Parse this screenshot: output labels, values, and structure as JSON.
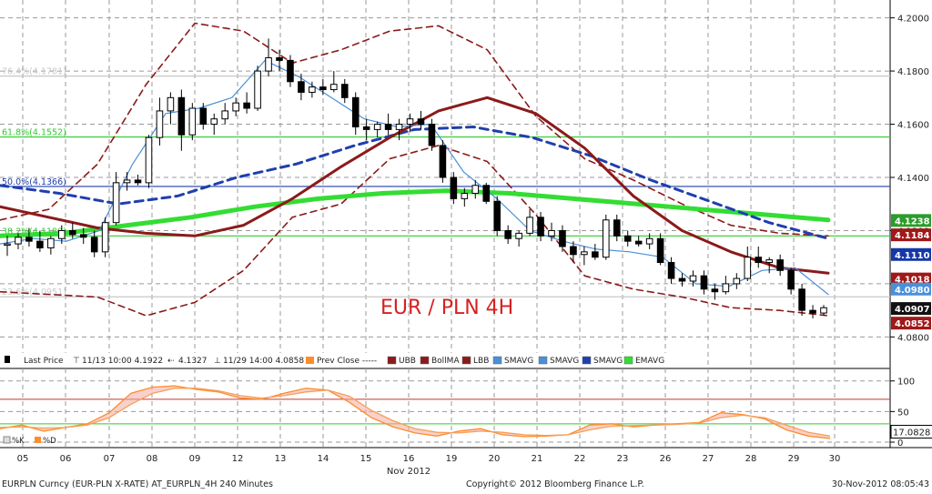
{
  "chart_data": [
    {
      "type": "candlestick",
      "panel": "price",
      "instrument": "EURPLN Curncy",
      "annotation": "EUR / PLN 4H",
      "x_labels": [
        "05",
        "06",
        "07",
        "08",
        "09",
        "12",
        "13",
        "14",
        "15",
        "16",
        "19",
        "20",
        "21",
        "22",
        "23",
        "26",
        "27",
        "28",
        "29",
        "30"
      ],
      "month_label": "Nov 2012",
      "ylim": [
        4.075,
        4.205
      ],
      "y_ticks": [
        "4.2000",
        "4.1800",
        "4.1600",
        "4.1400",
        "4.1200",
        "4.1000",
        "4.0800"
      ],
      "fib_levels": [
        {
          "label": "76.4%(4.1781)",
          "value": 4.1781,
          "color": "#c8c8c8"
        },
        {
          "label": "61.8%(4.1552)",
          "value": 4.1552,
          "color": "#2ecc2e"
        },
        {
          "label": "50.0%(4.1366)",
          "value": 4.1366,
          "color": "#1f3fae"
        },
        {
          "label": "38.2%(4.1180)",
          "value": 4.118,
          "color": "#2ecc2e"
        },
        {
          "label": "23.6%(4.0951)",
          "value": 4.0951,
          "color": "#c8c8c8"
        }
      ],
      "candles": [
        [
          4.1145,
          4.118,
          4.1105,
          4.115
        ],
        [
          4.115,
          4.119,
          4.113,
          4.1175
        ],
        [
          4.1175,
          4.121,
          4.114,
          4.116
        ],
        [
          4.116,
          4.12,
          4.112,
          4.1135
        ],
        [
          4.1135,
          4.118,
          4.111,
          4.117
        ],
        [
          4.117,
          4.122,
          4.115,
          4.12
        ],
        [
          4.12,
          4.123,
          4.117,
          4.1185
        ],
        [
          4.1185,
          4.121,
          4.115,
          4.1175
        ],
        [
          4.1175,
          4.12,
          4.11,
          4.112
        ],
        [
          4.112,
          4.125,
          4.11,
          4.123
        ],
        [
          4.123,
          4.142,
          4.122,
          4.138
        ],
        [
          4.138,
          4.142,
          4.135,
          4.139
        ],
        [
          4.139,
          4.141,
          4.137,
          4.138
        ],
        [
          4.138,
          4.156,
          4.136,
          4.155
        ],
        [
          4.155,
          4.17,
          4.152,
          4.165
        ],
        [
          4.165,
          4.172,
          4.16,
          4.17
        ],
        [
          4.17,
          4.173,
          4.15,
          4.156
        ],
        [
          4.156,
          4.168,
          4.154,
          4.166
        ],
        [
          4.166,
          4.168,
          4.158,
          4.16
        ],
        [
          4.16,
          4.164,
          4.156,
          4.162
        ],
        [
          4.162,
          4.168,
          4.16,
          4.165
        ],
        [
          4.165,
          4.17,
          4.163,
          4.168
        ],
        [
          4.168,
          4.172,
          4.164,
          4.166
        ],
        [
          4.166,
          4.182,
          4.165,
          4.18
        ],
        [
          4.18,
          4.1922,
          4.178,
          4.185
        ],
        [
          4.185,
          4.188,
          4.18,
          4.184
        ],
        [
          4.184,
          4.186,
          4.174,
          4.176
        ],
        [
          4.176,
          4.179,
          4.169,
          4.172
        ],
        [
          4.172,
          4.176,
          4.17,
          4.174
        ],
        [
          4.174,
          4.177,
          4.171,
          4.173
        ],
        [
          4.173,
          4.18,
          4.172,
          4.175
        ],
        [
          4.175,
          4.177,
          4.168,
          4.17
        ],
        [
          4.17,
          4.172,
          4.156,
          4.159
        ],
        [
          4.159,
          4.162,
          4.154,
          4.158
        ],
        [
          4.158,
          4.161,
          4.155,
          4.16
        ],
        [
          4.16,
          4.164,
          4.156,
          4.158
        ],
        [
          4.158,
          4.162,
          4.154,
          4.16
        ],
        [
          4.16,
          4.164,
          4.157,
          4.162
        ],
        [
          4.162,
          4.165,
          4.158,
          4.16
        ],
        [
          4.16,
          4.162,
          4.15,
          4.152
        ],
        [
          4.152,
          4.154,
          4.138,
          4.14
        ],
        [
          4.14,
          4.142,
          4.13,
          4.132
        ],
        [
          4.132,
          4.136,
          4.129,
          4.134
        ],
        [
          4.134,
          4.139,
          4.132,
          4.137
        ],
        [
          4.137,
          4.138,
          4.13,
          4.131
        ],
        [
          4.131,
          4.133,
          4.118,
          4.12
        ],
        [
          4.12,
          4.122,
          4.115,
          4.117
        ],
        [
          4.117,
          4.12,
          4.114,
          4.119
        ],
        [
          4.119,
          4.128,
          4.118,
          4.125
        ],
        [
          4.125,
          4.127,
          4.116,
          4.118
        ],
        [
          4.118,
          4.123,
          4.116,
          4.12
        ],
        [
          4.12,
          4.122,
          4.112,
          4.114
        ],
        [
          4.114,
          4.116,
          4.108,
          4.111
        ],
        [
          4.111,
          4.114,
          4.107,
          4.112
        ],
        [
          4.112,
          4.115,
          4.109,
          4.11
        ],
        [
          4.11,
          4.126,
          4.109,
          4.124
        ],
        [
          4.124,
          4.126,
          4.116,
          4.118
        ],
        [
          4.118,
          4.12,
          4.114,
          4.116
        ],
        [
          4.116,
          4.118,
          4.114,
          4.115
        ],
        [
          4.115,
          4.119,
          4.113,
          4.117
        ],
        [
          4.117,
          4.119,
          4.107,
          4.108
        ],
        [
          4.108,
          4.11,
          4.1,
          4.102
        ],
        [
          4.102,
          4.104,
          4.099,
          4.101
        ],
        [
          4.101,
          4.105,
          4.099,
          4.103
        ],
        [
          4.103,
          4.105,
          4.096,
          4.098
        ],
        [
          4.098,
          4.1,
          4.094,
          4.097
        ],
        [
          4.097,
          4.103,
          4.096,
          4.1
        ],
        [
          4.1,
          4.104,
          4.098,
          4.102
        ],
        [
          4.102,
          4.114,
          4.101,
          4.11
        ],
        [
          4.11,
          4.114,
          4.106,
          4.108
        ],
        [
          4.108,
          4.11,
          4.104,
          4.109
        ],
        [
          4.109,
          4.111,
          4.103,
          4.105
        ],
        [
          4.105,
          4.106,
          4.096,
          4.098
        ],
        [
          4.098,
          4.1,
          4.088,
          4.09
        ],
        [
          4.09,
          4.092,
          4.087,
          4.089
        ],
        [
          4.089,
          4.092,
          4.088,
          4.091
        ]
      ],
      "series": [
        {
          "name": "BollMA",
          "color": "#8b1a1a",
          "style": "solid",
          "width": 3,
          "values": [
            4.129,
            4.125,
            4.121,
            4.119,
            4.118,
            4.122,
            4.132,
            4.144,
            4.155,
            4.165,
            4.17,
            4.164,
            4.151,
            4.133,
            4.12,
            4.112,
            4.106,
            4.104
          ]
        },
        {
          "name": "UBB",
          "color": "#8b1a1a",
          "style": "dash",
          "width": 1.6,
          "values": [
            4.124,
            4.128,
            4.145,
            4.175,
            4.198,
            4.195,
            4.183,
            4.188,
            4.195,
            4.197,
            4.188,
            4.163,
            4.147,
            4.139,
            4.13,
            4.122,
            4.119,
            4.118
          ]
        },
        {
          "name": "LBB",
          "color": "#8b1a1a",
          "style": "dash",
          "width": 1.6,
          "values": [
            4.097,
            4.096,
            4.095,
            4.088,
            4.093,
            4.105,
            4.125,
            4.13,
            4.147,
            4.152,
            4.146,
            4.126,
            4.103,
            4.098,
            4.095,
            4.091,
            4.09,
            4.088
          ]
        },
        {
          "name": "SMAVG",
          "color": "#1f3fae",
          "style": "dash",
          "width": 3,
          "values": [
            4.137,
            4.134,
            4.13,
            4.133,
            4.14,
            4.145,
            4.152,
            4.158,
            4.159,
            4.155,
            4.148,
            4.139,
            4.131,
            4.123,
            4.117
          ]
        },
        {
          "name": "EMAVG",
          "color": "#33dd33",
          "style": "solid",
          "width": 5,
          "values": [
            4.118,
            4.119,
            4.122,
            4.125,
            4.129,
            4.132,
            4.134,
            4.135,
            4.134,
            4.132,
            4.13,
            4.128,
            4.126,
            4.124
          ]
        },
        {
          "name": "SMAVG",
          "color": "#4a90d9",
          "style": "solid",
          "width": 1.2,
          "values": [
            4.115,
            4.117,
            4.116,
            4.12,
            4.145,
            4.164,
            4.166,
            4.17,
            4.184,
            4.178,
            4.17,
            4.162,
            4.159,
            4.16,
            4.142,
            4.132,
            4.12,
            4.116,
            4.113,
            4.112,
            4.11,
            4.1,
            4.099,
            4.105,
            4.106,
            4.096
          ]
        }
      ],
      "last_value_tags": [
        {
          "label": "4.1238",
          "value": 4.1238,
          "bg": "#2a9d2a"
        },
        {
          "label": "4.1184",
          "value": 4.1184,
          "bg": "#a01818"
        },
        {
          "label": "4.1110",
          "value": 4.111,
          "bg": "#1438a8"
        },
        {
          "label": "4.1018",
          "value": 4.1018,
          "bg": "#a01818"
        },
        {
          "label": "4.0980",
          "value": 4.098,
          "bg": "#4a90d9"
        },
        {
          "label": "4.0907",
          "value": 4.0907,
          "bg": "#111111"
        },
        {
          "label": "4.0852",
          "value": 4.0852,
          "bg": "#a01818"
        }
      ],
      "legend": {
        "last_price": "Last Price",
        "high": "11/13 10:00 4.1922",
        "mid": "4.1327",
        "low": "11/29 14:00 4.0858",
        "prev_close": "Prev Close -----",
        "items": [
          {
            "name": "UBB",
            "color": "#8b1a1a"
          },
          {
            "name": "BollMA",
            "color": "#8b1a1a"
          },
          {
            "name": "LBB",
            "color": "#8b1a1a"
          },
          {
            "name": "SMAVG",
            "color": "#4a90d9"
          },
          {
            "name": "SMAVG",
            "color": "#4a90d9"
          },
          {
            "name": "SMAVG",
            "color": "#1f3fae"
          },
          {
            "name": "EMAVG",
            "color": "#33dd33"
          }
        ]
      }
    },
    {
      "type": "line",
      "panel": "oscillator",
      "ylim": [
        0,
        110
      ],
      "y_ticks": [
        "100",
        "50",
        "0"
      ],
      "levels": [
        70,
        30
      ],
      "legend": [
        "%K",
        "%D"
      ],
      "series": [
        {
          "name": "%K",
          "color": "#ff8c2a",
          "values": [
            22,
            28,
            18,
            24,
            30,
            48,
            80,
            90,
            92,
            86,
            82,
            72,
            70,
            80,
            88,
            85,
            65,
            40,
            25,
            15,
            10,
            18,
            22,
            12,
            9,
            10,
            12,
            28,
            30,
            25,
            28,
            30,
            32,
            48,
            45,
            38,
            20,
            10,
            6
          ]
        },
        {
          "name": "%D",
          "color": "#f5a05a",
          "values": [
            24,
            25,
            23,
            24,
            28,
            40,
            62,
            80,
            88,
            88,
            84,
            76,
            72,
            76,
            82,
            85,
            75,
            52,
            35,
            22,
            16,
            15,
            18,
            16,
            12,
            11,
            12,
            20,
            26,
            27,
            28,
            29,
            31,
            40,
            44,
            40,
            28,
            16,
            10
          ]
        }
      ],
      "last_value_tags": [
        {
          "label": "17.0828",
          "value": 17.08,
          "bg": "#ffffff"
        }
      ]
    }
  ],
  "footer": {
    "left": "EURPLN Curncy (EUR-PLN X-RATE) AT_EURPLN_4H  240 Minutes",
    "center": "Copyright© 2012 Bloomberg Finance L.P.",
    "right": "30-Nov-2012 08:05:43"
  }
}
